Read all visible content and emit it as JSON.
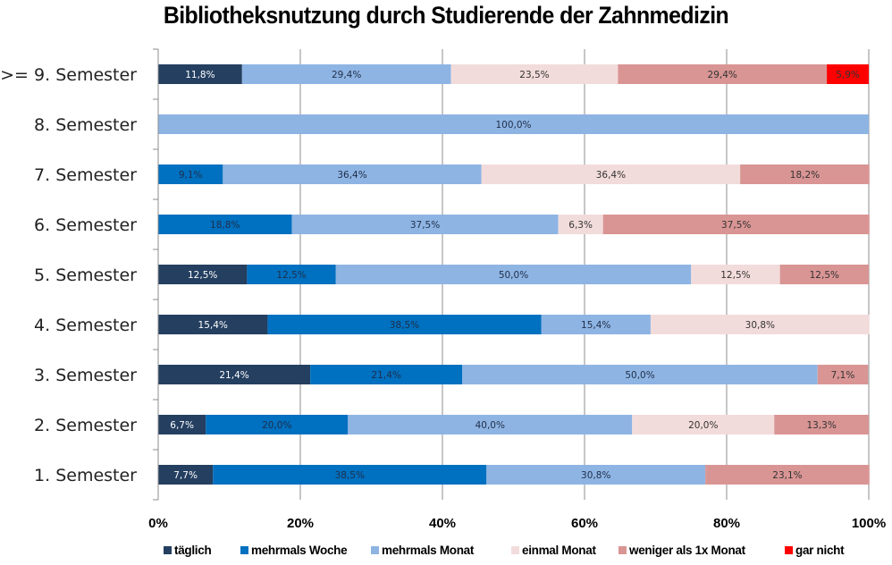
{
  "chart_data": {
    "type": "bar",
    "orientation": "horizontal",
    "stacked": "percent",
    "title": "Bibliotheksnutzung durch Studierende der Zahnmedizin",
    "xlabel": "",
    "ylabel": "",
    "xlim": [
      0,
      100
    ],
    "x_ticks": [
      "0%",
      "20%",
      "40%",
      "60%",
      "80%",
      "100%"
    ],
    "grid": true,
    "legend_position": "bottom",
    "categories": [
      ">= 9. Semester",
      "8. Semester",
      "7. Semester",
      "6. Semester",
      "5. Semester",
      "4. Semester",
      "3. Semester",
      "2. Semester",
      "1. Semester"
    ],
    "series": [
      {
        "name": "täglich",
        "color": "#243f60",
        "label_color": "#ffffff",
        "values": [
          11.8,
          0,
          0,
          0,
          12.5,
          15.4,
          21.4,
          6.7,
          7.7
        ],
        "labels": [
          "11,8%",
          "",
          "",
          "",
          "12,5%",
          "15,4%",
          "21,4%",
          "6,7%",
          "7,7%"
        ]
      },
      {
        "name": "mehrmals Woche",
        "color": "#0070c0",
        "label_color": "#1f2f4a",
        "values": [
          0,
          0,
          9.1,
          18.8,
          12.5,
          38.5,
          21.4,
          20.0,
          38.5
        ],
        "labels": [
          "",
          "",
          "9,1%",
          "18,8%",
          "12,5%",
          "38,5%",
          "21,4%",
          "20,0%",
          "38,5%"
        ]
      },
      {
        "name": "mehrmals Monat",
        "color": "#8eb4e3",
        "label_color": "#1f2f4a",
        "values": [
          29.4,
          100.0,
          36.4,
          37.5,
          50.0,
          15.4,
          50.0,
          40.0,
          30.8
        ],
        "labels": [
          "29,4%",
          "100,0%",
          "36,4%",
          "37,5%",
          "50,0%",
          "15,4%",
          "50,0%",
          "40,0%",
          "30,8%"
        ]
      },
      {
        "name": "einmal Monat",
        "color": "#f2dcdb",
        "label_color": "#333333",
        "values": [
          23.5,
          0,
          36.4,
          6.3,
          12.5,
          30.8,
          0,
          20.0,
          0
        ],
        "labels": [
          "23,5%",
          "",
          "36,4%",
          "6,3%",
          "12,5%",
          "30,8%",
          "",
          "20,0%",
          ""
        ]
      },
      {
        "name": "weniger als 1x Monat",
        "color": "#d99594",
        "label_color": "#333333",
        "values": [
          29.4,
          0,
          18.2,
          37.5,
          12.5,
          0,
          7.1,
          13.3,
          23.1
        ],
        "labels": [
          "29,4%",
          "",
          "18,2%",
          "37,5%",
          "12,5%",
          "",
          "7,1%",
          "13,3%",
          "23,1%"
        ]
      },
      {
        "name": "gar nicht",
        "color": "#ff0000",
        "label_color": "#333333",
        "values": [
          5.9,
          0,
          0,
          0,
          0,
          0,
          0,
          0,
          0
        ],
        "labels": [
          "5,9%",
          "",
          "",
          "",
          "",
          "",
          "",
          "",
          ""
        ]
      }
    ]
  }
}
